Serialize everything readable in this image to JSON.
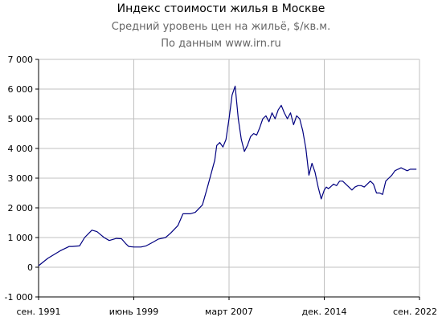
{
  "chart_data": {
    "type": "line",
    "title": "Индекс стоимости жилья в Москве",
    "subtitle": "Средний уровень цен на жильё, $/кв.м.",
    "source": "По данным www.irn.ru",
    "xlabel": "",
    "ylabel": "",
    "x_ticks": [
      "сен. 1991",
      "июнь 1999",
      "март 2007",
      "дек. 2014",
      "сен. 2022"
    ],
    "y_ticks": [
      "-1 000",
      "0",
      "1 000",
      "2 000",
      "3 000",
      "4 000",
      "5 000",
      "6 000",
      "7 000"
    ],
    "xlim": [
      "1991-09",
      "2022-09"
    ],
    "ylim": [
      -1000,
      7000
    ],
    "grid": true,
    "line_color": "#000080",
    "grid_color": "#c0c0c0",
    "series": [
      {
        "x": [
          "1991-09",
          "1992-06",
          "1993-06",
          "1994-03",
          "1994-06",
          "1995-01",
          "1995-06",
          "1996-01",
          "1996-06",
          "1997-01",
          "1997-06",
          "1998-01",
          "1998-06",
          "1998-10",
          "1999-01",
          "1999-06",
          "2000-01",
          "2000-06",
          "2001-01",
          "2001-06",
          "2002-01",
          "2002-06",
          "2003-01",
          "2003-06",
          "2004-01",
          "2004-06",
          "2005-01",
          "2005-06",
          "2006-01",
          "2006-03",
          "2006-06",
          "2006-09",
          "2006-12",
          "2007-03",
          "2007-06",
          "2007-09",
          "2007-12",
          "2008-03",
          "2008-06",
          "2008-09",
          "2008-12",
          "2009-03",
          "2009-06",
          "2009-09",
          "2009-12",
          "2010-03",
          "2010-06",
          "2010-09",
          "2010-12",
          "2011-03",
          "2011-06",
          "2011-09",
          "2011-12",
          "2012-03",
          "2012-06",
          "2012-09",
          "2012-12",
          "2013-03",
          "2013-06",
          "2013-09",
          "2013-12",
          "2014-03",
          "2014-06",
          "2014-09",
          "2014-12",
          "2015-02",
          "2015-04",
          "2015-06",
          "2015-09",
          "2015-12",
          "2016-03",
          "2016-06",
          "2016-09",
          "2016-12",
          "2017-03",
          "2017-06",
          "2017-09",
          "2017-12",
          "2018-03",
          "2018-06",
          "2018-09",
          "2018-12",
          "2019-03",
          "2019-06",
          "2019-09",
          "2019-12",
          "2020-03",
          "2020-06",
          "2020-09",
          "2020-12",
          "2021-03",
          "2021-06",
          "2021-09",
          "2021-12",
          "2022-03",
          "2022-06"
        ],
        "values": [
          50,
          300,
          550,
          700,
          700,
          720,
          1000,
          1250,
          1200,
          1000,
          900,
          970,
          960,
          800,
          700,
          680,
          680,
          720,
          850,
          950,
          1000,
          1150,
          1400,
          1800,
          1800,
          1850,
          2100,
          2700,
          3600,
          4100,
          4200,
          4050,
          4300,
          5000,
          5800,
          6100,
          5000,
          4300,
          3900,
          4100,
          4400,
          4500,
          4450,
          4700,
          5000,
          5100,
          4900,
          5200,
          5000,
          5300,
          5450,
          5200,
          5000,
          5200,
          4800,
          5100,
          5000,
          4600,
          4000,
          3100,
          3500,
          3200,
          2700,
          2300,
          2600,
          2700,
          2650,
          2700,
          2800,
          2750,
          2900,
          2900,
          2800,
          2700,
          2600,
          2700,
          2750,
          2750,
          2700,
          2800,
          2900,
          2800,
          2500,
          2500,
          2450,
          2900,
          3000,
          3100,
          3250,
          3300,
          3350,
          3300,
          3250,
          3300,
          3300,
          3300
        ]
      }
    ]
  }
}
